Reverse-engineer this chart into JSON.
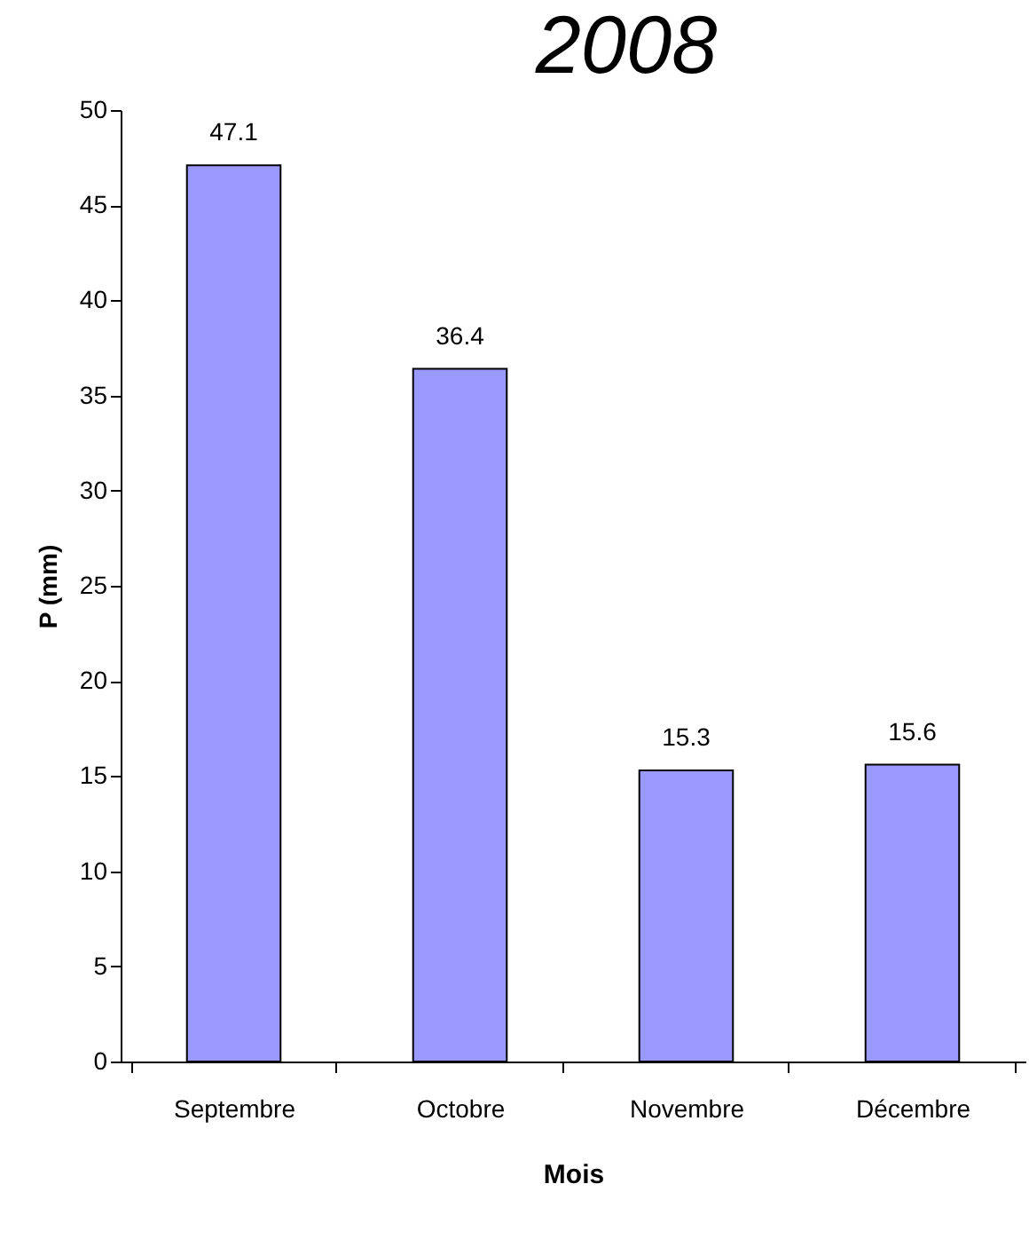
{
  "chart_data": {
    "type": "bar",
    "title": "2008",
    "xlabel": "Mois",
    "ylabel": "P (mm)",
    "categories": [
      "Septembre",
      "Octobre",
      "Novembre",
      "Décembre"
    ],
    "values": [
      47.1,
      36.4,
      15.3,
      15.6
    ],
    "color": "#9999ff",
    "ylim": [
      0,
      50
    ],
    "yticks": [
      0,
      5,
      10,
      15,
      20,
      25,
      30,
      35,
      40,
      45,
      50
    ],
    "grid": false,
    "data_labels": true
  }
}
